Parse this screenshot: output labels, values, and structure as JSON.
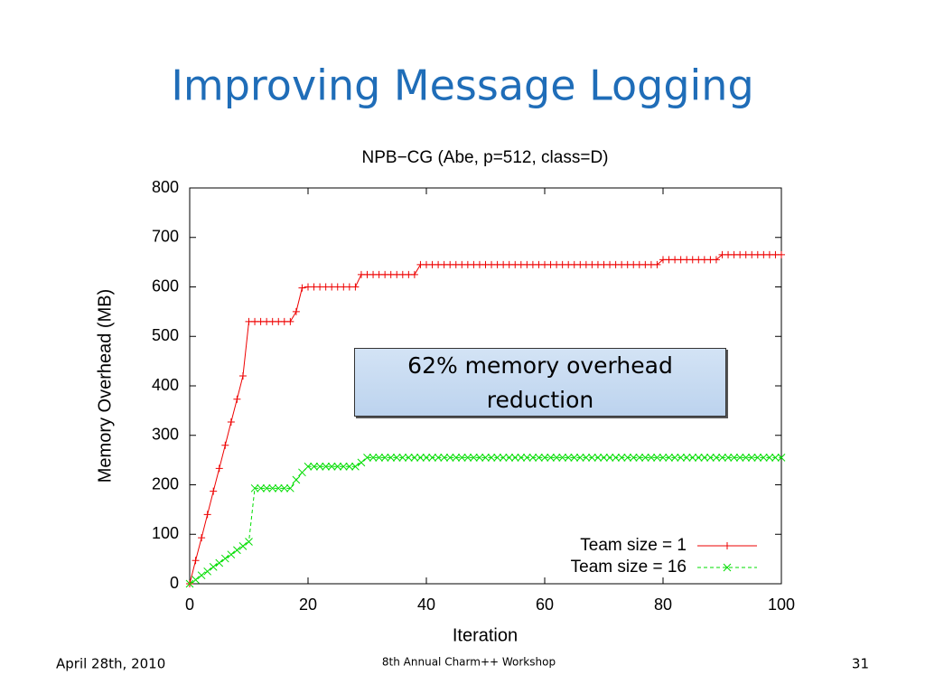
{
  "slide": {
    "title": "Improving Message Logging",
    "date": "April 28th, 2010",
    "event": "8th Annual Charm++ Workshop",
    "page": 31
  },
  "chart_data": {
    "type": "line",
    "title": "NPB−CG (Abe, p=512, class=D)",
    "x_label": "Iteration",
    "y_label": "Memory Overhead (MB)",
    "annotation": "62% memory overhead reduction",
    "xlim": [
      0,
      100
    ],
    "xticks": [
      0,
      20,
      40,
      60,
      80,
      100
    ],
    "ylim": [
      0,
      800
    ],
    "yticks": [
      0,
      100,
      200,
      300,
      400,
      500,
      600,
      700,
      800
    ],
    "legend": "lower right",
    "x": [
      0,
      1,
      2,
      3,
      4,
      5,
      6,
      7,
      8,
      9,
      10,
      11,
      12,
      13,
      14,
      15,
      16,
      17,
      18,
      19,
      20,
      21,
      22,
      23,
      24,
      25,
      26,
      27,
      28,
      29,
      30,
      31,
      32,
      33,
      34,
      35,
      36,
      37,
      38,
      39,
      40,
      41,
      42,
      43,
      44,
      45,
      46,
      47,
      48,
      49,
      50,
      51,
      52,
      53,
      54,
      55,
      56,
      57,
      58,
      59,
      60,
      61,
      62,
      63,
      64,
      65,
      66,
      67,
      68,
      69,
      70,
      71,
      72,
      73,
      74,
      75,
      76,
      77,
      78,
      79,
      80,
      81,
      82,
      83,
      84,
      85,
      86,
      87,
      88,
      89,
      90,
      91,
      92,
      93,
      94,
      95,
      96,
      97,
      98,
      99,
      100
    ],
    "series": [
      {
        "name": "Team size = 1",
        "color": "#ee0000",
        "marker": "plus",
        "dashed": false,
        "values": [
          0,
          47,
          93,
          140,
          187,
          233,
          280,
          327,
          373,
          420,
          530,
          530,
          530,
          530,
          530,
          530,
          530,
          530,
          550,
          598,
          600,
          600,
          600,
          600,
          600,
          600,
          600,
          600,
          600,
          625,
          625,
          625,
          625,
          625,
          625,
          625,
          625,
          625,
          625,
          645,
          645,
          645,
          645,
          645,
          645,
          645,
          645,
          645,
          645,
          645,
          645,
          645,
          645,
          645,
          645,
          645,
          645,
          645,
          645,
          645,
          645,
          645,
          645,
          645,
          645,
          645,
          645,
          645,
          645,
          645,
          645,
          645,
          645,
          645,
          645,
          645,
          645,
          645,
          645,
          645,
          655,
          655,
          655,
          655,
          655,
          655,
          655,
          655,
          655,
          655,
          665,
          665,
          665,
          665,
          665,
          665,
          665,
          665,
          665,
          665,
          665
        ]
      },
      {
        "name": "Team size = 16",
        "color": "#00dd00",
        "marker": "cross",
        "dashed": true,
        "values": [
          0,
          8,
          17,
          25,
          34,
          42,
          51,
          59,
          68,
          76,
          85,
          193,
          193,
          193,
          193,
          193,
          193,
          193,
          210,
          225,
          237,
          237,
          237,
          237,
          237,
          237,
          237,
          237,
          237,
          245,
          255,
          255,
          255,
          255,
          255,
          255,
          255,
          255,
          255,
          255,
          255,
          255,
          255,
          255,
          255,
          255,
          255,
          255,
          255,
          255,
          255,
          255,
          255,
          255,
          255,
          255,
          255,
          255,
          255,
          255,
          255,
          255,
          255,
          255,
          255,
          255,
          255,
          255,
          255,
          255,
          255,
          255,
          255,
          255,
          255,
          255,
          255,
          255,
          255,
          255,
          255,
          255,
          255,
          255,
          255,
          255,
          255,
          255,
          255,
          255,
          255,
          255,
          255,
          255,
          255,
          255,
          255,
          255,
          255,
          255,
          255
        ]
      }
    ]
  }
}
